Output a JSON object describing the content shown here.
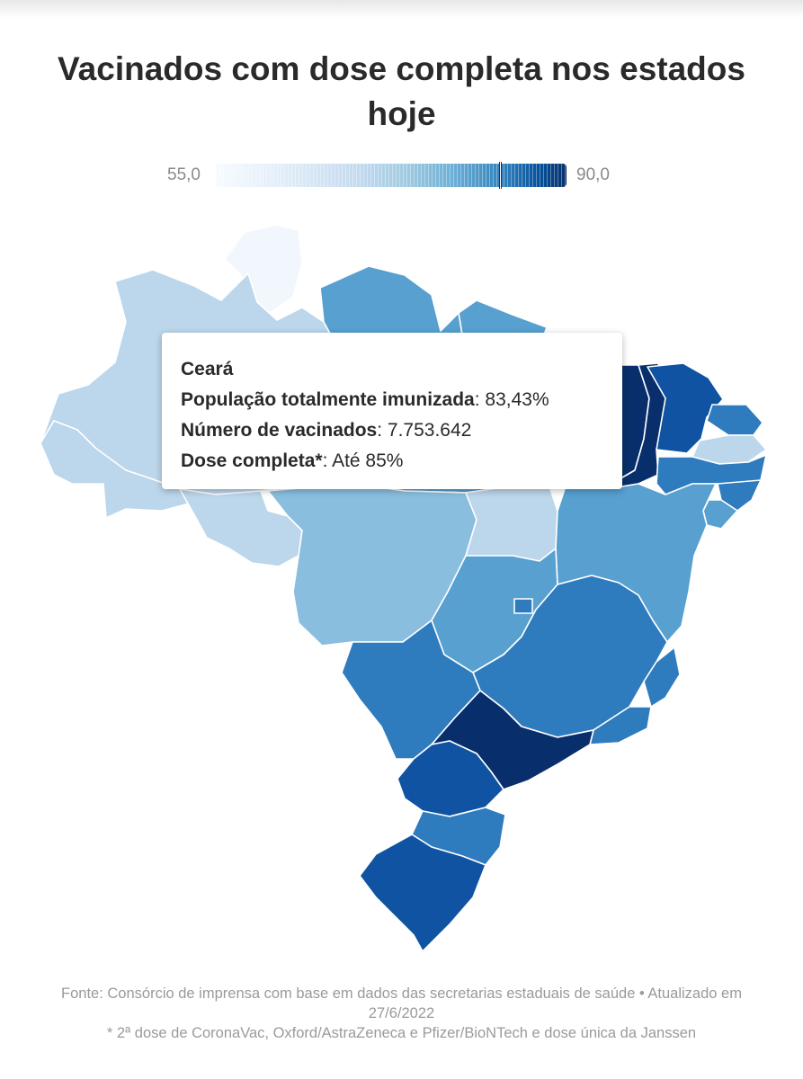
{
  "title": "Vacinados com dose completa nos estados hoje",
  "legend": {
    "min": "55,0",
    "max": "90,0",
    "scale_min": 55.0,
    "scale_max": 90.0,
    "marker_value": 83.43
  },
  "tooltip": {
    "state": "Ceará",
    "rows": [
      {
        "label": "População totalmente imunizada",
        "value": "83,43%"
      },
      {
        "label": "Número de vacinados",
        "value": "7.753.642"
      },
      {
        "label": "Dose completa*",
        "value": "Até 85%"
      }
    ]
  },
  "footer": {
    "source": "Fonte: Consórcio de imprensa com base em dados das secretarias estaduais de saúde • Atualizado em 27/6/2022",
    "note": "* 2ª dose de CoronaVac, Oxford/AstraZeneca e Pfizer/BioNTech e dose única da Janssen"
  },
  "colors": {
    "tier_1": "#f2f7fd",
    "tier_2": "#bcd6eb",
    "tier_3": "#8abedf",
    "tier_4": "#57a0d0",
    "tier_5": "#2e7bbe",
    "tier_6": "#0f53a2",
    "tier_7": "#082f6b",
    "hover_outline": "#1a1a1a"
  },
  "states": [
    {
      "id": "RR",
      "tier": "tier_1"
    },
    {
      "id": "AM",
      "tier": "tier_2"
    },
    {
      "id": "AC",
      "tier": "tier_2"
    },
    {
      "id": "RO",
      "tier": "tier_2"
    },
    {
      "id": "TO",
      "tier": "tier_2"
    },
    {
      "id": "AP",
      "tier": "tier_4"
    },
    {
      "id": "PA",
      "tier": "tier_4"
    },
    {
      "id": "MT",
      "tier": "tier_3"
    },
    {
      "id": "GO",
      "tier": "tier_4"
    },
    {
      "id": "BA",
      "tier": "tier_4"
    },
    {
      "id": "SE",
      "tier": "tier_4"
    },
    {
      "id": "MA",
      "tier": "tier_7"
    },
    {
      "id": "PI",
      "tier": "tier_7"
    },
    {
      "id": "CE",
      "tier": "tier_6"
    },
    {
      "id": "RN",
      "tier": "tier_5"
    },
    {
      "id": "PB",
      "tier": "tier_2"
    },
    {
      "id": "PE",
      "tier": "tier_5"
    },
    {
      "id": "AL",
      "tier": "tier_5"
    },
    {
      "id": "MS",
      "tier": "tier_5"
    },
    {
      "id": "MG",
      "tier": "tier_5"
    },
    {
      "id": "DF",
      "tier": "tier_5"
    },
    {
      "id": "ES",
      "tier": "tier_5"
    },
    {
      "id": "RJ",
      "tier": "tier_5"
    },
    {
      "id": "SC",
      "tier": "tier_5"
    },
    {
      "id": "SP",
      "tier": "tier_7"
    },
    {
      "id": "PR",
      "tier": "tier_6"
    },
    {
      "id": "RS",
      "tier": "tier_6"
    }
  ]
}
